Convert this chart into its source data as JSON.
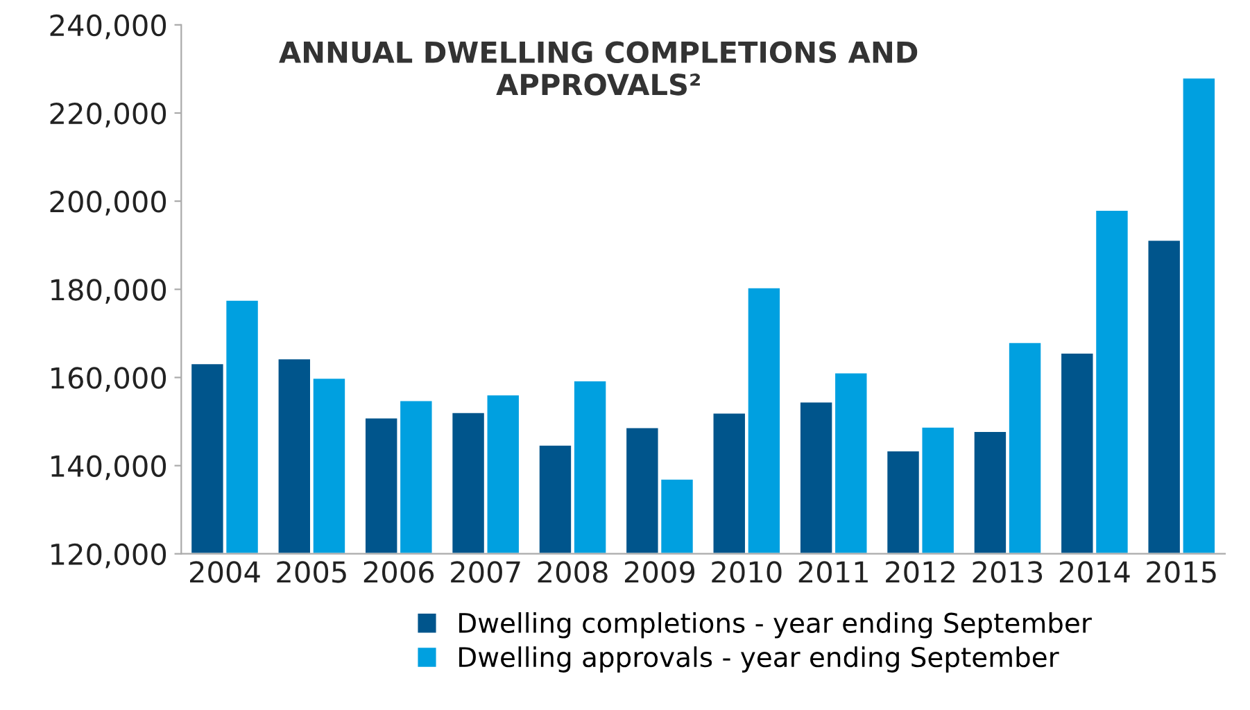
{
  "chart_data": {
    "type": "bar",
    "title": "ANNUAL DWELLING COMPLETIONS AND\nAPPROVALS²",
    "categories": [
      "2004",
      "2005",
      "2006",
      "2007",
      "2008",
      "2009",
      "2010",
      "2011",
      "2012",
      "2013",
      "2014",
      "2015"
    ],
    "series": [
      {
        "name": "Dwelling completions - year ending September",
        "color": "#00558c",
        "values": [
          163200,
          164300,
          150900,
          152100,
          144700,
          148700,
          152000,
          154500,
          143400,
          147800,
          165600,
          191200
        ]
      },
      {
        "name": "Dwelling approvals - year ending September",
        "color": "#00a0e0",
        "values": [
          177600,
          159900,
          154800,
          156100,
          159300,
          137000,
          180400,
          161100,
          148800,
          168000,
          198000,
          228000
        ]
      }
    ],
    "ylim": [
      120000,
      240000
    ],
    "yticks": [
      {
        "value": 120000,
        "label": "120,000"
      },
      {
        "value": 140000,
        "label": "140,000"
      },
      {
        "value": 160000,
        "label": "160,000"
      },
      {
        "value": 180000,
        "label": "180,000"
      },
      {
        "value": 200000,
        "label": "200,000"
      },
      {
        "value": 220000,
        "label": "220,000"
      },
      {
        "value": 240000,
        "label": "240,000"
      }
    ],
    "grid": false,
    "legend": "bottom"
  }
}
